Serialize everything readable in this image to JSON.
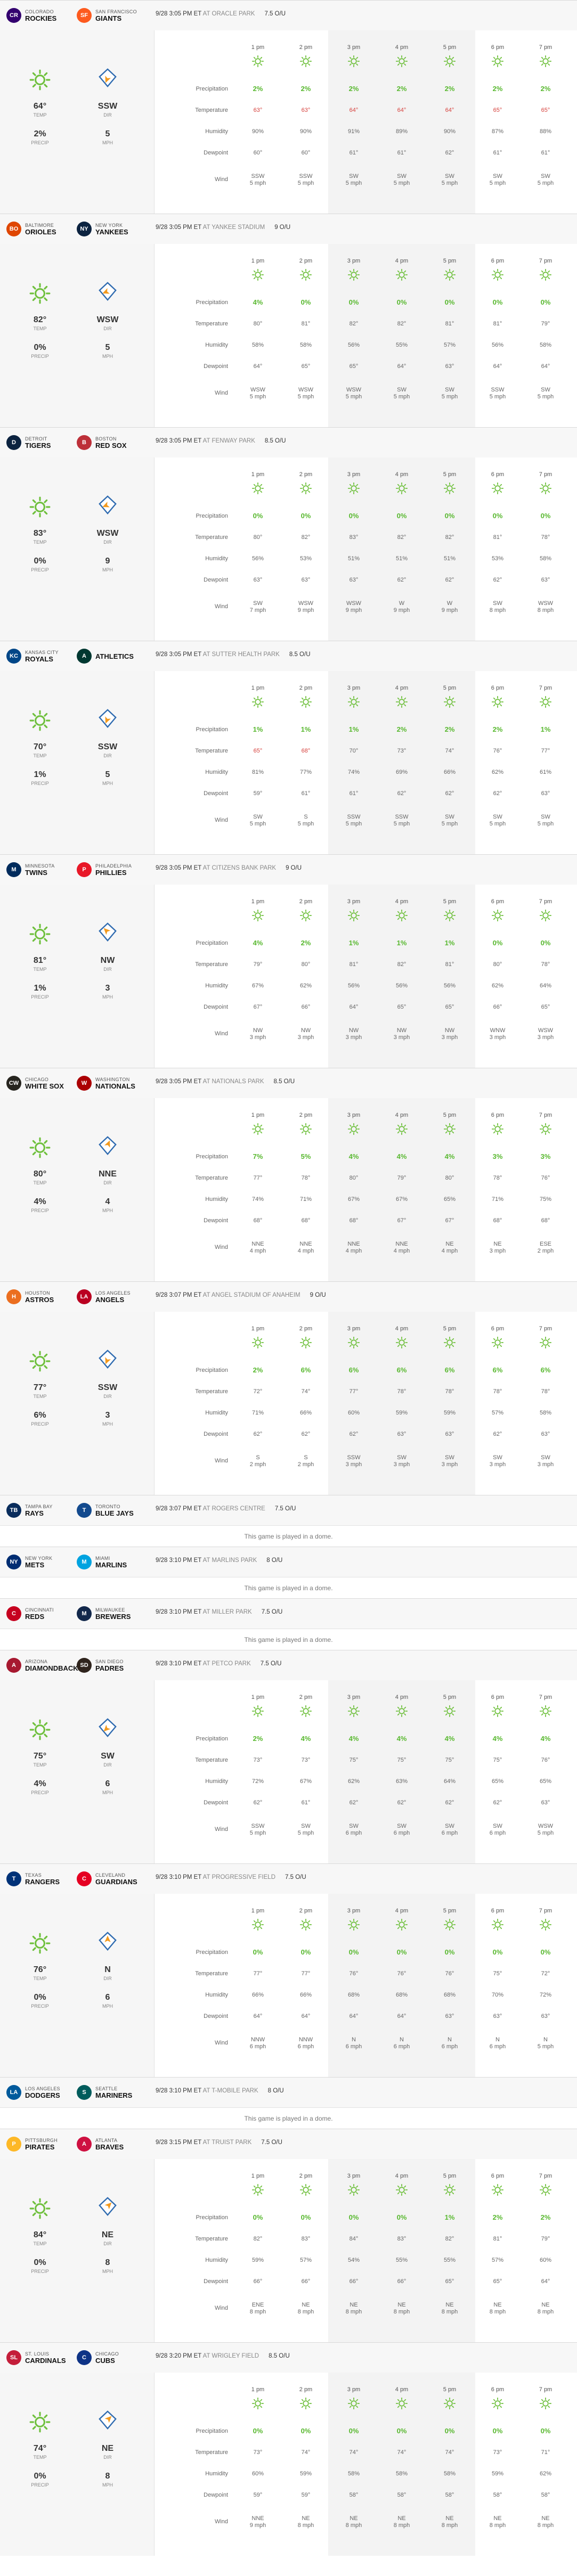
{
  "labels": {
    "precip_row": "Precipitation",
    "temp_row": "Temperature",
    "humidity_row": "Humidity",
    "dewpoint_row": "Dewpoint",
    "wind_row": "Wind",
    "temp_caption": "TEMP",
    "dir_caption": "DIR",
    "precip_caption": "PRECIP",
    "mph_caption": "MPH",
    "at": "AT"
  },
  "hours": [
    "1 pm",
    "2 pm",
    "3 pm",
    "4 pm",
    "5 pm",
    "6 pm",
    "7 pm"
  ],
  "colors": {
    "green": "#58b82f",
    "red": "#d6403c",
    "sun": "#6fc03d",
    "orange": "#f39a1e",
    "blue": "#2f6bb0"
  },
  "games": [
    {
      "away": {
        "city": "COLORADO",
        "name": "ROCKIES",
        "abbr": "CR",
        "color": "#33006f"
      },
      "home": {
        "city": "SAN FRANCISCO",
        "name": "GIANTS",
        "abbr": "SF",
        "color": "#fd5a1e"
      },
      "time": "9/28 3:05 PM ET",
      "park": "ORACLE PARK",
      "rating": "7.5 O/U",
      "summary": {
        "temp": "64°",
        "dir": "SSW",
        "precip": "2%",
        "mph": "5"
      },
      "hourly": {
        "precip": [
          "2%",
          "2%",
          "2%",
          "2%",
          "2%",
          "2%",
          "2%"
        ],
        "temp": [
          "63°",
          "63°",
          "64°",
          "64°",
          "64°",
          "65°",
          "65°"
        ],
        "temp_hot": [
          true,
          true,
          true,
          true,
          true,
          true,
          true
        ],
        "humidity": [
          "90%",
          "90%",
          "91%",
          "89%",
          "90%",
          "87%",
          "88%"
        ],
        "dewpoint": [
          "60°",
          "60°",
          "61°",
          "61°",
          "62°",
          "61°",
          "61°"
        ],
        "wind_dir": [
          "SSW",
          "SSW",
          "SW",
          "SW",
          "SW",
          "SW",
          "SW"
        ],
        "wind_mph": [
          "5 mph",
          "5 mph",
          "5 mph",
          "5 mph",
          "5 mph",
          "5 mph",
          "5 mph"
        ]
      }
    },
    {
      "away": {
        "city": "BALTIMORE",
        "name": "ORIOLES",
        "abbr": "BO",
        "color": "#df4601"
      },
      "home": {
        "city": "NEW YORK",
        "name": "YANKEES",
        "abbr": "NY",
        "color": "#0c2340"
      },
      "time": "9/28 3:05 PM ET",
      "park": "YANKEE STADIUM",
      "rating": "9 O/U",
      "summary": {
        "temp": "82°",
        "dir": "WSW",
        "precip": "0%",
        "mph": "5"
      },
      "hourly": {
        "precip": [
          "4%",
          "0%",
          "0%",
          "0%",
          "0%",
          "0%",
          "0%"
        ],
        "temp": [
          "80°",
          "81°",
          "82°",
          "82°",
          "81°",
          "81°",
          "79°"
        ],
        "temp_hot": [
          false,
          false,
          false,
          false,
          false,
          false,
          false
        ],
        "humidity": [
          "58%",
          "58%",
          "56%",
          "55%",
          "57%",
          "56%",
          "58%"
        ],
        "dewpoint": [
          "64°",
          "65°",
          "65°",
          "64°",
          "63°",
          "64°",
          "64°"
        ],
        "wind_dir": [
          "WSW",
          "WSW",
          "WSW",
          "SW",
          "SW",
          "SSW",
          "SW"
        ],
        "wind_mph": [
          "5 mph",
          "5 mph",
          "5 mph",
          "5 mph",
          "5 mph",
          "5 mph",
          "5 mph"
        ]
      }
    },
    {
      "away": {
        "city": "DETROIT",
        "name": "TIGERS",
        "abbr": "D",
        "color": "#0c2340"
      },
      "home": {
        "city": "BOSTON",
        "name": "RED SOX",
        "abbr": "B",
        "color": "#bd3039"
      },
      "time": "9/28 3:05 PM ET",
      "park": "FENWAY PARK",
      "rating": "8.5 O/U",
      "summary": {
        "temp": "83°",
        "dir": "WSW",
        "precip": "0%",
        "mph": "9"
      },
      "hourly": {
        "precip": [
          "0%",
          "0%",
          "0%",
          "0%",
          "0%",
          "0%",
          "0%"
        ],
        "temp": [
          "80°",
          "82°",
          "83°",
          "82°",
          "82°",
          "81°",
          "78°"
        ],
        "temp_hot": [
          false,
          false,
          false,
          false,
          false,
          false,
          false
        ],
        "humidity": [
          "56%",
          "53%",
          "51%",
          "51%",
          "51%",
          "53%",
          "58%"
        ],
        "dewpoint": [
          "63°",
          "63°",
          "63°",
          "62°",
          "62°",
          "62°",
          "63°"
        ],
        "wind_dir": [
          "SW",
          "WSW",
          "WSW",
          "W",
          "W",
          "SW",
          "WSW"
        ],
        "wind_mph": [
          "7 mph",
          "9 mph",
          "9 mph",
          "9 mph",
          "9 mph",
          "8 mph",
          "8 mph"
        ]
      }
    },
    {
      "away": {
        "city": "KANSAS CITY",
        "name": "ROYALS",
        "abbr": "KC",
        "color": "#004687"
      },
      "home": {
        "city": "",
        "name": "ATHLETICS",
        "abbr": "A",
        "color": "#003831"
      },
      "time": "9/28 3:05 PM ET",
      "park": "SUTTER HEALTH PARK",
      "rating": "8.5 O/U",
      "summary": {
        "temp": "70°",
        "dir": "SSW",
        "precip": "1%",
        "mph": "5"
      },
      "hourly": {
        "precip": [
          "1%",
          "1%",
          "1%",
          "2%",
          "2%",
          "2%",
          "1%"
        ],
        "temp": [
          "65°",
          "68°",
          "70°",
          "73°",
          "74°",
          "76°",
          "77°"
        ],
        "temp_hot": [
          true,
          true,
          false,
          false,
          false,
          false,
          false
        ],
        "humidity": [
          "81%",
          "77%",
          "74%",
          "69%",
          "66%",
          "62%",
          "61%"
        ],
        "dewpoint": [
          "59°",
          "61°",
          "61°",
          "62°",
          "62°",
          "62°",
          "63°"
        ],
        "wind_dir": [
          "SW",
          "S",
          "SSW",
          "SSW",
          "SW",
          "SW",
          "SW"
        ],
        "wind_mph": [
          "5 mph",
          "5 mph",
          "5 mph",
          "5 mph",
          "5 mph",
          "5 mph",
          "5 mph"
        ]
      }
    },
    {
      "away": {
        "city": "MINNESOTA",
        "name": "TWINS",
        "abbr": "M",
        "color": "#002b5c"
      },
      "home": {
        "city": "PHILADELPHIA",
        "name": "PHILLIES",
        "abbr": "P",
        "color": "#e81828"
      },
      "time": "9/28 3:05 PM ET",
      "park": "CITIZENS BANK PARK",
      "rating": "9 O/U",
      "summary": {
        "temp": "81°",
        "dir": "NW",
        "precip": "1%",
        "mph": "3"
      },
      "hourly": {
        "precip": [
          "4%",
          "2%",
          "1%",
          "1%",
          "1%",
          "0%",
          "0%"
        ],
        "temp": [
          "79°",
          "80°",
          "81°",
          "82°",
          "81°",
          "80°",
          "78°"
        ],
        "temp_hot": [
          false,
          false,
          false,
          false,
          false,
          false,
          false
        ],
        "humidity": [
          "67%",
          "62%",
          "56%",
          "56%",
          "56%",
          "62%",
          "64%"
        ],
        "dewpoint": [
          "67°",
          "66°",
          "64°",
          "65°",
          "65°",
          "66°",
          "65°"
        ],
        "wind_dir": [
          "NW",
          "NW",
          "NW",
          "NW",
          "NW",
          "WNW",
          "WSW"
        ],
        "wind_mph": [
          "3 mph",
          "3 mph",
          "3 mph",
          "3 mph",
          "3 mph",
          "3 mph",
          "3 mph"
        ]
      }
    },
    {
      "away": {
        "city": "CHICAGO",
        "name": "WHITE SOX",
        "abbr": "CW",
        "color": "#27251f"
      },
      "home": {
        "city": "WASHINGTON",
        "name": "NATIONALS",
        "abbr": "W",
        "color": "#ab0003"
      },
      "time": "9/28 3:05 PM ET",
      "park": "NATIONALS PARK",
      "rating": "8.5 O/U",
      "summary": {
        "temp": "80°",
        "dir": "NNE",
        "precip": "4%",
        "mph": "4"
      },
      "hourly": {
        "precip": [
          "7%",
          "5%",
          "4%",
          "4%",
          "4%",
          "3%",
          "3%"
        ],
        "temp": [
          "77°",
          "78°",
          "80°",
          "79°",
          "80°",
          "78°",
          "76°"
        ],
        "temp_hot": [
          false,
          false,
          false,
          false,
          false,
          false,
          false
        ],
        "humidity": [
          "74%",
          "71%",
          "67%",
          "67%",
          "65%",
          "71%",
          "75%"
        ],
        "dewpoint": [
          "68°",
          "68°",
          "68°",
          "67°",
          "67°",
          "68°",
          "68°"
        ],
        "wind_dir": [
          "NNE",
          "NNE",
          "NNE",
          "NNE",
          "NE",
          "NE",
          "ESE"
        ],
        "wind_mph": [
          "4 mph",
          "4 mph",
          "4 mph",
          "4 mph",
          "4 mph",
          "3 mph",
          "2 mph"
        ]
      }
    },
    {
      "away": {
        "city": "HOUSTON",
        "name": "ASTROS",
        "abbr": "H",
        "color": "#eb6e1f"
      },
      "home": {
        "city": "LOS ANGELES",
        "name": "ANGELS",
        "abbr": "LA",
        "color": "#ba0021"
      },
      "time": "9/28 3:07 PM ET",
      "park": "ANGEL STADIUM OF ANAHEIM",
      "rating": "9 O/U",
      "summary": {
        "temp": "77°",
        "dir": "SSW",
        "precip": "6%",
        "mph": "3"
      },
      "hourly": {
        "precip": [
          "2%",
          "6%",
          "6%",
          "6%",
          "6%",
          "6%",
          "6%"
        ],
        "temp": [
          "72°",
          "74°",
          "77°",
          "78°",
          "78°",
          "78°",
          "78°"
        ],
        "temp_hot": [
          false,
          false,
          false,
          false,
          false,
          false,
          false
        ],
        "humidity": [
          "71%",
          "66%",
          "60%",
          "59%",
          "59%",
          "57%",
          "58%"
        ],
        "dewpoint": [
          "62°",
          "62°",
          "62°",
          "63°",
          "63°",
          "62°",
          "63°"
        ],
        "wind_dir": [
          "S",
          "S",
          "SSW",
          "SW",
          "SW",
          "SW",
          "SW"
        ],
        "wind_mph": [
          "2 mph",
          "2 mph",
          "3 mph",
          "3 mph",
          "3 mph",
          "3 mph",
          "3 mph"
        ]
      }
    },
    {
      "away": {
        "city": "TAMPA BAY",
        "name": "RAYS",
        "abbr": "TB",
        "color": "#092c5c"
      },
      "home": {
        "city": "TORONTO",
        "name": "BLUE JAYS",
        "abbr": "T",
        "color": "#134a8e"
      },
      "time": "9/28 3:07 PM ET",
      "park": "ROGERS CENTRE",
      "rating": "7.5 O/U",
      "dome": "This game is played in a dome."
    },
    {
      "away": {
        "city": "NEW YORK",
        "name": "METS",
        "abbr": "NY",
        "color": "#002d72"
      },
      "home": {
        "city": "MIAMI",
        "name": "MARLINS",
        "abbr": "M",
        "color": "#00a3e0"
      },
      "time": "9/28 3:10 PM ET",
      "park": "MARLINS PARK",
      "rating": "8 O/U",
      "dome": "This game is played in a dome."
    },
    {
      "away": {
        "city": "CINCINNATI",
        "name": "REDS",
        "abbr": "C",
        "color": "#c6011f"
      },
      "home": {
        "city": "MILWAUKEE",
        "name": "BREWERS",
        "abbr": "M",
        "color": "#12284b"
      },
      "time": "9/28 3:10 PM ET",
      "park": "MILLER PARK",
      "rating": "7.5 O/U",
      "dome": "This game is played in a dome."
    },
    {
      "away": {
        "city": "ARIZONA",
        "name": "DIAMONDBACKS",
        "abbr": "A",
        "color": "#a71930"
      },
      "home": {
        "city": "SAN DIEGO",
        "name": "PADRES",
        "abbr": "SD",
        "color": "#2f241d"
      },
      "time": "9/28 3:10 PM ET",
      "park": "PETCO PARK",
      "rating": "7.5 O/U",
      "summary": {
        "temp": "75°",
        "dir": "SW",
        "precip": "4%",
        "mph": "6"
      },
      "hourly": {
        "precip": [
          "2%",
          "4%",
          "4%",
          "4%",
          "4%",
          "4%",
          "4%"
        ],
        "temp": [
          "73°",
          "73°",
          "75°",
          "75°",
          "75°",
          "75°",
          "76°"
        ],
        "temp_hot": [
          false,
          false,
          false,
          false,
          false,
          false,
          false
        ],
        "humidity": [
          "72%",
          "67%",
          "62%",
          "63%",
          "64%",
          "65%",
          "65%"
        ],
        "dewpoint": [
          "62°",
          "61°",
          "62°",
          "62°",
          "62°",
          "62°",
          "63°"
        ],
        "wind_dir": [
          "SSW",
          "SW",
          "SW",
          "SW",
          "SW",
          "SW",
          "WSW"
        ],
        "wind_mph": [
          "5 mph",
          "5 mph",
          "6 mph",
          "6 mph",
          "6 mph",
          "6 mph",
          "5 mph"
        ]
      }
    },
    {
      "away": {
        "city": "TEXAS",
        "name": "RANGERS",
        "abbr": "T",
        "color": "#003278"
      },
      "home": {
        "city": "CLEVELAND",
        "name": "GUARDIANS",
        "abbr": "C",
        "color": "#e50022"
      },
      "time": "9/28 3:10 PM ET",
      "park": "PROGRESSIVE FIELD",
      "rating": "7.5 O/U",
      "summary": {
        "temp": "76°",
        "dir": "N",
        "precip": "0%",
        "mph": "6"
      },
      "hourly": {
        "precip": [
          "0%",
          "0%",
          "0%",
          "0%",
          "0%",
          "0%",
          "0%"
        ],
        "temp": [
          "77°",
          "77°",
          "76°",
          "76°",
          "76°",
          "75°",
          "72°"
        ],
        "temp_hot": [
          false,
          false,
          false,
          false,
          false,
          false,
          false
        ],
        "humidity": [
          "66%",
          "66%",
          "68%",
          "68%",
          "68%",
          "70%",
          "72%"
        ],
        "dewpoint": [
          "64°",
          "64°",
          "64°",
          "64°",
          "63°",
          "63°",
          "63°"
        ],
        "wind_dir": [
          "NNW",
          "NNW",
          "N",
          "N",
          "N",
          "N",
          "N"
        ],
        "wind_mph": [
          "6 mph",
          "6 mph",
          "6 mph",
          "6 mph",
          "6 mph",
          "6 mph",
          "5 mph"
        ]
      }
    },
    {
      "away": {
        "city": "LOS ANGELES",
        "name": "DODGERS",
        "abbr": "LA",
        "color": "#005a9c"
      },
      "home": {
        "city": "SEATTLE",
        "name": "MARINERS",
        "abbr": "S",
        "color": "#005c5c"
      },
      "time": "9/28 3:10 PM ET",
      "park": "T-MOBILE PARK",
      "rating": "8 O/U",
      "dome": "This game is played in a dome."
    },
    {
      "away": {
        "city": "PITTSBURGH",
        "name": "PIRATES",
        "abbr": "P",
        "color": "#fdb827"
      },
      "home": {
        "city": "ATLANTA",
        "name": "BRAVES",
        "abbr": "A",
        "color": "#ce1141"
      },
      "time": "9/28 3:15 PM ET",
      "park": "TRUIST PARK",
      "rating": "7.5 O/U",
      "summary": {
        "temp": "84°",
        "dir": "NE",
        "precip": "0%",
        "mph": "8"
      },
      "hourly": {
        "precip": [
          "0%",
          "0%",
          "0%",
          "0%",
          "1%",
          "2%",
          "2%"
        ],
        "temp": [
          "82°",
          "83°",
          "84°",
          "83°",
          "82°",
          "81°",
          "79°"
        ],
        "temp_hot": [
          false,
          false,
          false,
          false,
          false,
          false,
          false
        ],
        "humidity": [
          "59%",
          "57%",
          "54%",
          "55%",
          "55%",
          "57%",
          "60%"
        ],
        "dewpoint": [
          "66°",
          "66°",
          "66°",
          "66°",
          "65°",
          "65°",
          "64°"
        ],
        "wind_dir": [
          "ENE",
          "NE",
          "NE",
          "NE",
          "NE",
          "NE",
          "NE"
        ],
        "wind_mph": [
          "8 mph",
          "8 mph",
          "8 mph",
          "8 mph",
          "8 mph",
          "8 mph",
          "8 mph"
        ]
      }
    },
    {
      "away": {
        "city": "ST. LOUIS",
        "name": "CARDINALS",
        "abbr": "SL",
        "color": "#c41e3a"
      },
      "home": {
        "city": "CHICAGO",
        "name": "CUBS",
        "abbr": "C",
        "color": "#0e3386"
      },
      "time": "9/28 3:20 PM ET",
      "park": "WRIGLEY FIELD",
      "rating": "8.5 O/U",
      "summary": {
        "temp": "74°",
        "dir": "NE",
        "precip": "0%",
        "mph": "8"
      },
      "hourly": {
        "precip": [
          "0%",
          "0%",
          "0%",
          "0%",
          "0%",
          "0%",
          "0%"
        ],
        "temp": [
          "73°",
          "74°",
          "74°",
          "74°",
          "74°",
          "73°",
          "71°"
        ],
        "temp_hot": [
          false,
          false,
          false,
          false,
          false,
          false,
          false
        ],
        "humidity": [
          "60%",
          "59%",
          "58%",
          "58%",
          "58%",
          "59%",
          "62%"
        ],
        "dewpoint": [
          "59°",
          "59°",
          "58°",
          "58°",
          "58°",
          "58°",
          "58°"
        ],
        "wind_dir": [
          "NNE",
          "NE",
          "NE",
          "NE",
          "NE",
          "NE",
          "NE"
        ],
        "wind_mph": [
          "9 mph",
          "8 mph",
          "8 mph",
          "8 mph",
          "8 mph",
          "8 mph",
          "8 mph"
        ]
      }
    }
  ]
}
